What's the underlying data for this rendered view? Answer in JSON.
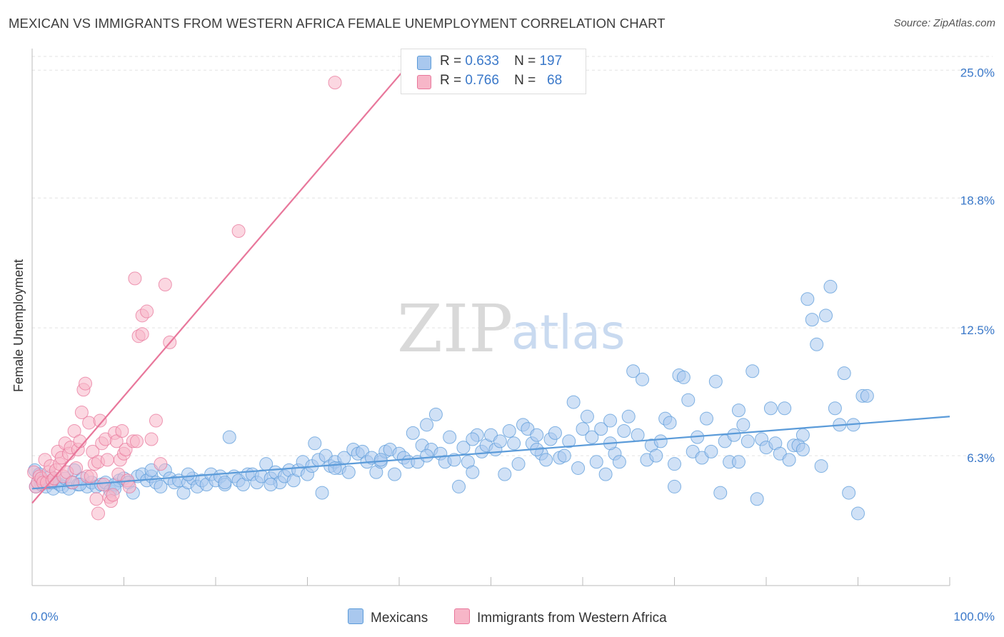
{
  "title": "MEXICAN VS IMMIGRANTS FROM WESTERN AFRICA FEMALE UNEMPLOYMENT CORRELATION CHART",
  "source": "Source: ZipAtlas.com",
  "watermark": {
    "zip": "ZIP",
    "atlas": "atlas"
  },
  "legend": [
    {
      "r_label": "R =",
      "r_value": "0.633",
      "n_label": "N =",
      "n_value": "197",
      "color": "#a9c8ee"
    },
    {
      "r_label": "R =",
      "r_value": "0.766",
      "n_label": "N =",
      "n_value": "68",
      "color": "#f7b6c8"
    }
  ],
  "bottom_legend": [
    {
      "label": "Mexicans",
      "color": "#a9c8ee"
    },
    {
      "label": "Immigrants from Western Africa",
      "color": "#f7b6c8"
    }
  ],
  "chart_data": {
    "type": "scatter",
    "title": "MEXICAN VS IMMIGRANTS FROM WESTERN AFRICA FEMALE UNEMPLOYMENT CORRELATION CHART",
    "xlabel": "",
    "ylabel": "Female Unemployment",
    "xlim": [
      0,
      100
    ],
    "ylim": [
      0,
      26.5
    ],
    "x_tick_labels": [
      "0.0%",
      "100.0%"
    ],
    "y_ticks": [
      6.3,
      12.5,
      18.8,
      25.0
    ],
    "y_tick_labels": [
      "6.3%",
      "12.5%",
      "18.8%",
      "25.0%"
    ],
    "grid": true,
    "legend_position": "top-center",
    "series": [
      {
        "name": "Mexicans",
        "color": "#5b9bd9",
        "fill": "#a9c8ee",
        "trend": {
          "x0": 0,
          "y0": 4.7,
          "x1": 100,
          "y1": 8.2
        },
        "points": [
          [
            0.3,
            5.6
          ],
          [
            0.4,
            4.8
          ],
          [
            0.6,
            5.0
          ],
          [
            0.8,
            5.4
          ],
          [
            1.0,
            4.9
          ],
          [
            1.2,
            5.1
          ],
          [
            1.5,
            4.8
          ],
          [
            1.8,
            5.0
          ],
          [
            2.0,
            5.3
          ],
          [
            2.3,
            4.7
          ],
          [
            2.6,
            5.0
          ],
          [
            3.0,
            4.9
          ],
          [
            3.3,
            4.8
          ],
          [
            3.6,
            5.2
          ],
          [
            4.0,
            4.7
          ],
          [
            4.3,
            5.0
          ],
          [
            4.6,
            5.6
          ],
          [
            5.0,
            4.9
          ],
          [
            5.5,
            5.2
          ],
          [
            6.0,
            4.8
          ],
          [
            6.5,
            5.0
          ],
          [
            7.0,
            4.8
          ],
          [
            7.5,
            4.9
          ],
          [
            8.0,
            5.0
          ],
          [
            8.5,
            4.6
          ],
          [
            9.0,
            4.9
          ],
          [
            9.5,
            5.1
          ],
          [
            10.0,
            5.2
          ],
          [
            10.5,
            5.0
          ],
          [
            11.0,
            4.5
          ],
          [
            11.5,
            5.3
          ],
          [
            12.0,
            5.4
          ],
          [
            12.5,
            5.1
          ],
          [
            13.0,
            5.3
          ],
          [
            13.5,
            5.0
          ],
          [
            14.0,
            4.8
          ],
          [
            14.5,
            5.6
          ],
          [
            15.0,
            5.2
          ],
          [
            15.5,
            5.0
          ],
          [
            16.0,
            5.1
          ],
          [
            16.5,
            4.5
          ],
          [
            17.0,
            5.0
          ],
          [
            17.5,
            5.2
          ],
          [
            18.0,
            4.8
          ],
          [
            18.5,
            5.1
          ],
          [
            19.0,
            4.9
          ],
          [
            19.5,
            5.4
          ],
          [
            20.0,
            5.1
          ],
          [
            20.5,
            5.3
          ],
          [
            21.0,
            4.9
          ],
          [
            21.5,
            7.2
          ],
          [
            22.0,
            5.3
          ],
          [
            22.5,
            5.1
          ],
          [
            23.0,
            4.9
          ],
          [
            23.5,
            5.4
          ],
          [
            24.0,
            5.4
          ],
          [
            24.5,
            5.0
          ],
          [
            25.0,
            5.3
          ],
          [
            25.5,
            5.9
          ],
          [
            26.0,
            5.2
          ],
          [
            26.5,
            5.5
          ],
          [
            27.0,
            5.0
          ],
          [
            27.5,
            5.3
          ],
          [
            28.0,
            5.6
          ],
          [
            28.5,
            5.1
          ],
          [
            29.0,
            5.6
          ],
          [
            29.5,
            6.0
          ],
          [
            30.0,
            5.4
          ],
          [
            30.5,
            5.8
          ],
          [
            30.8,
            6.9
          ],
          [
            31.2,
            6.1
          ],
          [
            31.6,
            4.5
          ],
          [
            32.0,
            6.3
          ],
          [
            32.5,
            5.8
          ],
          [
            33.0,
            6.0
          ],
          [
            33.5,
            5.7
          ],
          [
            34.0,
            6.2
          ],
          [
            34.5,
            5.5
          ],
          [
            35.0,
            6.6
          ],
          [
            35.5,
            6.4
          ],
          [
            36.0,
            6.5
          ],
          [
            36.5,
            6.0
          ],
          [
            37.0,
            6.2
          ],
          [
            37.5,
            5.5
          ],
          [
            38.0,
            6.0
          ],
          [
            38.5,
            6.5
          ],
          [
            39.0,
            6.6
          ],
          [
            39.5,
            5.4
          ],
          [
            40.0,
            6.4
          ],
          [
            40.5,
            6.2
          ],
          [
            41.0,
            6.0
          ],
          [
            41.5,
            7.4
          ],
          [
            42.0,
            6.0
          ],
          [
            42.5,
            6.8
          ],
          [
            43.0,
            7.8
          ],
          [
            43.5,
            6.6
          ],
          [
            44.0,
            8.3
          ],
          [
            44.5,
            6.4
          ],
          [
            45.0,
            6.0
          ],
          [
            45.5,
            7.2
          ],
          [
            46.0,
            6.1
          ],
          [
            46.5,
            4.8
          ],
          [
            47.0,
            6.7
          ],
          [
            47.5,
            6.0
          ],
          [
            48.0,
            5.5
          ],
          [
            48.5,
            7.3
          ],
          [
            49.0,
            6.5
          ],
          [
            49.5,
            6.8
          ],
          [
            50.0,
            7.3
          ],
          [
            50.5,
            6.6
          ],
          [
            51.0,
            7.0
          ],
          [
            51.5,
            5.4
          ],
          [
            52.0,
            7.5
          ],
          [
            52.5,
            6.9
          ],
          [
            53.0,
            5.9
          ],
          [
            53.5,
            7.8
          ],
          [
            54.0,
            7.6
          ],
          [
            54.5,
            6.9
          ],
          [
            55.0,
            7.3
          ],
          [
            55.5,
            6.4
          ],
          [
            56.0,
            6.1
          ],
          [
            56.5,
            7.1
          ],
          [
            57.0,
            7.4
          ],
          [
            57.5,
            6.2
          ],
          [
            58.0,
            6.3
          ],
          [
            58.5,
            7.0
          ],
          [
            59.0,
            8.9
          ],
          [
            59.5,
            5.7
          ],
          [
            60.0,
            7.6
          ],
          [
            60.5,
            8.2
          ],
          [
            61.0,
            7.2
          ],
          [
            61.5,
            6.0
          ],
          [
            62.0,
            7.6
          ],
          [
            62.5,
            5.4
          ],
          [
            63.0,
            8.0
          ],
          [
            63.5,
            6.4
          ],
          [
            64.0,
            6.0
          ],
          [
            64.5,
            7.5
          ],
          [
            65.0,
            8.2
          ],
          [
            65.5,
            10.4
          ],
          [
            66.0,
            7.3
          ],
          [
            66.5,
            10.0
          ],
          [
            67.0,
            6.1
          ],
          [
            67.5,
            6.8
          ],
          [
            68.0,
            6.3
          ],
          [
            68.5,
            7.0
          ],
          [
            69.0,
            8.1
          ],
          [
            69.5,
            7.9
          ],
          [
            70.0,
            4.8
          ],
          [
            70.5,
            10.2
          ],
          [
            71.0,
            10.1
          ],
          [
            71.5,
            9.0
          ],
          [
            72.0,
            6.5
          ],
          [
            72.5,
            7.2
          ],
          [
            73.0,
            6.2
          ],
          [
            73.5,
            8.1
          ],
          [
            74.0,
            6.5
          ],
          [
            74.5,
            9.9
          ],
          [
            75.0,
            4.5
          ],
          [
            75.5,
            7.0
          ],
          [
            76.0,
            6.0
          ],
          [
            76.5,
            7.3
          ],
          [
            77.0,
            8.5
          ],
          [
            77.5,
            7.8
          ],
          [
            78.0,
            7.0
          ],
          [
            78.5,
            10.4
          ],
          [
            79.0,
            4.2
          ],
          [
            79.5,
            7.1
          ],
          [
            80.0,
            6.7
          ],
          [
            80.5,
            8.6
          ],
          [
            81.0,
            6.9
          ],
          [
            81.5,
            6.4
          ],
          [
            82.0,
            8.6
          ],
          [
            82.5,
            6.1
          ],
          [
            83.0,
            6.8
          ],
          [
            83.5,
            6.8
          ],
          [
            84.0,
            7.3
          ],
          [
            84.5,
            13.9
          ],
          [
            85.0,
            12.9
          ],
          [
            85.5,
            11.7
          ],
          [
            86.0,
            5.8
          ],
          [
            86.5,
            13.1
          ],
          [
            87.0,
            14.5
          ],
          [
            87.5,
            8.6
          ],
          [
            88.0,
            7.8
          ],
          [
            88.5,
            10.3
          ],
          [
            89.0,
            4.5
          ],
          [
            89.5,
            7.8
          ],
          [
            90.0,
            3.5
          ],
          [
            90.5,
            9.2
          ],
          [
            91.0,
            9.2
          ],
          [
            5.2,
            4.9
          ],
          [
            9.0,
            4.7
          ],
          [
            13.0,
            5.6
          ],
          [
            17.0,
            5.4
          ],
          [
            21.0,
            5.0
          ],
          [
            26.0,
            4.9
          ],
          [
            33.0,
            5.7
          ],
          [
            38.0,
            6.1
          ],
          [
            43.0,
            6.3
          ],
          [
            48.0,
            7.1
          ],
          [
            55.0,
            6.6
          ],
          [
            63.0,
            6.9
          ],
          [
            70.0,
            5.9
          ],
          [
            77.0,
            6.0
          ],
          [
            84.0,
            6.6
          ],
          [
            2.1,
            5.0
          ]
        ]
      },
      {
        "name": "Immigrants from Western Africa",
        "color": "#e8779b",
        "fill": "#f7b6c8",
        "trend": {
          "x0": 0,
          "y0": 4.0,
          "x1": 40.5,
          "y1": 25.0
        },
        "points": [
          [
            0.2,
            5.5
          ],
          [
            0.4,
            4.8
          ],
          [
            0.6,
            5.0
          ],
          [
            0.8,
            5.3
          ],
          [
            1.0,
            5.2
          ],
          [
            1.2,
            5.0
          ],
          [
            1.4,
            6.1
          ],
          [
            1.6,
            5.0
          ],
          [
            1.8,
            5.5
          ],
          [
            2.0,
            5.8
          ],
          [
            2.2,
            5.1
          ],
          [
            2.4,
            5.2
          ],
          [
            2.6,
            5.6
          ],
          [
            2.8,
            6.5
          ],
          [
            3.0,
            5.9
          ],
          [
            3.2,
            6.2
          ],
          [
            3.4,
            5.3
          ],
          [
            3.6,
            6.9
          ],
          [
            3.8,
            5.5
          ],
          [
            4.0,
            6.4
          ],
          [
            4.2,
            6.7
          ],
          [
            4.4,
            5.0
          ],
          [
            4.6,
            7.5
          ],
          [
            4.8,
            5.7
          ],
          [
            5.0,
            6.6
          ],
          [
            5.2,
            7.0
          ],
          [
            5.4,
            8.4
          ],
          [
            5.6,
            9.5
          ],
          [
            5.8,
            9.8
          ],
          [
            6.0,
            5.3
          ],
          [
            6.2,
            7.9
          ],
          [
            6.4,
            5.3
          ],
          [
            6.6,
            6.5
          ],
          [
            6.8,
            5.9
          ],
          [
            7.0,
            4.2
          ],
          [
            7.2,
            6.0
          ],
          [
            7.4,
            8.0
          ],
          [
            7.6,
            6.9
          ],
          [
            7.8,
            4.9
          ],
          [
            8.0,
            7.1
          ],
          [
            8.2,
            6.1
          ],
          [
            8.4,
            4.3
          ],
          [
            8.6,
            4.1
          ],
          [
            8.8,
            4.4
          ],
          [
            9.0,
            7.4
          ],
          [
            9.2,
            7.0
          ],
          [
            9.4,
            5.4
          ],
          [
            9.6,
            6.1
          ],
          [
            9.8,
            7.5
          ],
          [
            10.0,
            6.4
          ],
          [
            10.2,
            6.6
          ],
          [
            10.4,
            5.1
          ],
          [
            10.6,
            4.8
          ],
          [
            11.0,
            7.0
          ],
          [
            11.2,
            14.9
          ],
          [
            11.4,
            7.0
          ],
          [
            11.6,
            12.1
          ],
          [
            12.0,
            13.1
          ],
          [
            12.5,
            13.3
          ],
          [
            13.0,
            7.1
          ],
          [
            13.5,
            8.0
          ],
          [
            14.0,
            5.9
          ],
          [
            14.5,
            14.6
          ],
          [
            15.0,
            11.8
          ],
          [
            22.5,
            17.2
          ],
          [
            33.0,
            24.4
          ],
          [
            7.2,
            3.5
          ],
          [
            12.0,
            12.2
          ]
        ]
      }
    ]
  }
}
